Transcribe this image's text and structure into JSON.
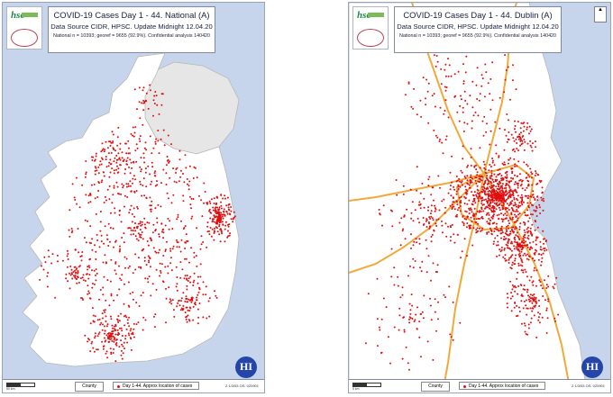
{
  "maps": [
    {
      "title": "COVID-19 Cases Day 1 - 44. National (A)",
      "subtitle": "Data Source CIDR, HPSC. Update Midnight 12.04.20",
      "stats": "National n = 10393; georef = 9655 (92.9%). Confidential analysis 140420",
      "legend_county": "County",
      "legend_cases": "Day 1-44. Approx location of cases",
      "scale_label": "50 km",
      "footer_codes": "Z 1/3/53     OS: 020901"
    },
    {
      "title": "COVID-19 Cases Day 1 - 44. Dublin (A)",
      "subtitle": "Data Source CIDR, HPSC. Update Midnight 12.04.20",
      "stats": "National n = 10393; georef = 9655 (92.9%). Confidential analysis 140420",
      "legend_county": "County",
      "legend_cases": "Day 1-44. Approx location of cases",
      "scale_label": "5 km",
      "footer_codes": "Z 1/3/53     OS: 020901"
    }
  ],
  "colors": {
    "sea": "#c6d4ec",
    "land": "#ffffff",
    "northern_ireland": "#e6e6e6",
    "case_dot": "#e01010",
    "road": "#f2a93b"
  }
}
